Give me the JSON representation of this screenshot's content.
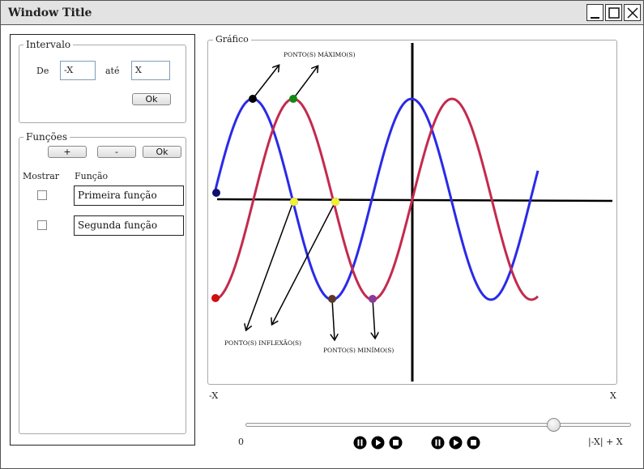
{
  "window": {
    "title": "Window Title"
  },
  "intervalo": {
    "legend": "Intervalo",
    "de_label": "De",
    "de_value": "-X",
    "ate_label": "até",
    "ate_value": "X",
    "ok_label": "Ok"
  },
  "funcoes": {
    "legend": "Funções",
    "add_label": "+",
    "remove_label": "-",
    "ok_label": "Ok",
    "col_mostrar": "Mostrar",
    "col_funcao": "Função",
    "items": [
      {
        "name": "Primeira função",
        "checked": false
      },
      {
        "name": "Segunda função",
        "checked": false
      }
    ]
  },
  "grafico": {
    "legend": "Gráfico",
    "annotations": {
      "maximo": "PONTO(S) MÁXIMO(S)",
      "inflexao": "PONTO(S) INFLEXÃO(S)",
      "minimo": "PONTO(S) MINÍMO(S)"
    },
    "x_left_label": "-X",
    "x_right_label": "X",
    "colors": {
      "blue": "#2a2ae8",
      "red": "#c42a4e",
      "axis": "#000000"
    }
  },
  "playback": {
    "start_label": "0",
    "end_label": "|-X| + X",
    "slider_fraction": 0.81,
    "icons": [
      "pause-icon",
      "play-icon",
      "stop-icon",
      "pause-icon",
      "play-icon",
      "stop-icon"
    ]
  }
}
